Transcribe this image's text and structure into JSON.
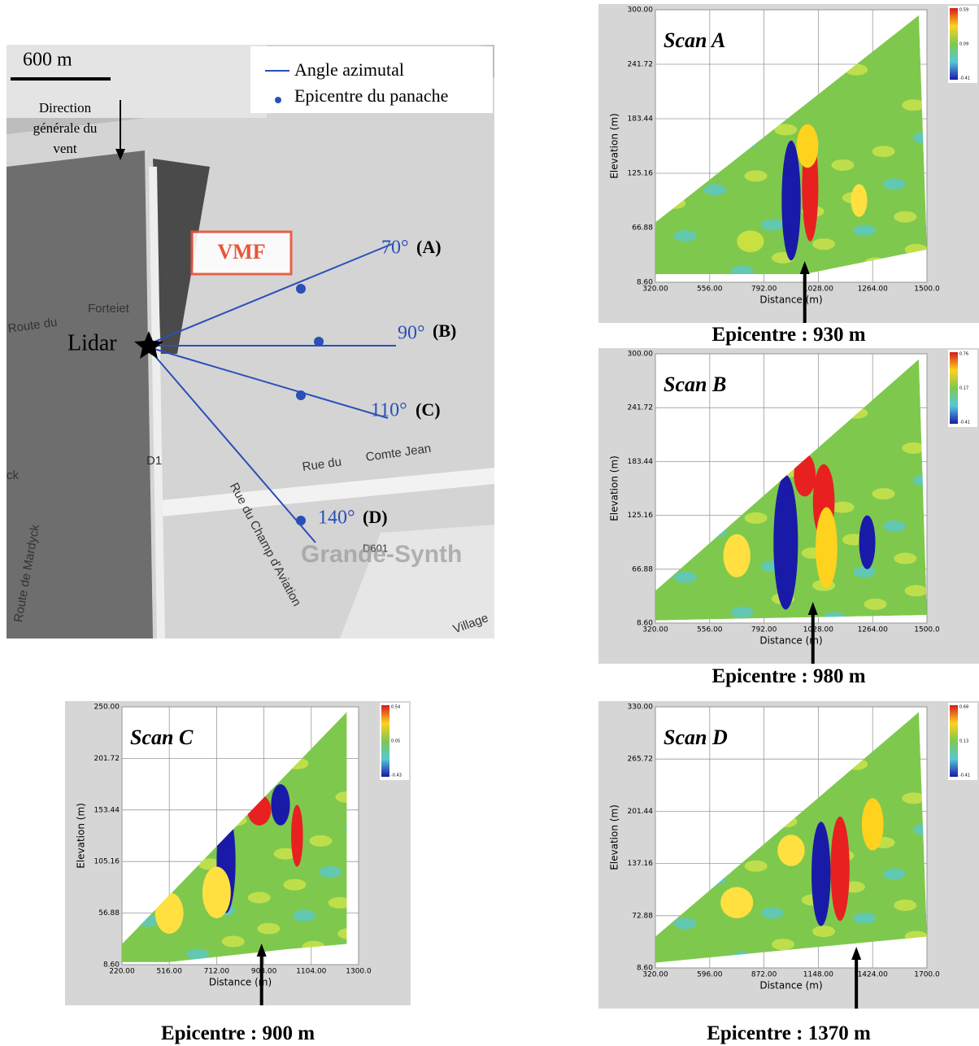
{
  "map": {
    "scale": "600 m",
    "legend": [
      "Angle azimutal",
      "Epicentre du panache"
    ],
    "wind": [
      "Direction",
      "générale du",
      "vent"
    ],
    "lidar": "Lidar",
    "vmf": "VMF",
    "azimuths": [
      {
        "angle": "70°",
        "label": "(A)"
      },
      {
        "angle": "90°",
        "label": "(B)"
      },
      {
        "angle": "110°",
        "label": "(C)"
      },
      {
        "angle": "140°",
        "label": "(D)"
      }
    ],
    "streets": [
      "Route du",
      "Forteiet",
      "D1",
      "Rue du",
      "Comte Jean",
      "Rue du Champ d'Aviation",
      "Route de Mardyck",
      "D601",
      "Grande-Synth",
      "Village",
      "ck"
    ]
  },
  "scans": [
    {
      "title": "Scan A",
      "x_label": "Distance (m)",
      "y_label": "Elevation (m)",
      "xticks": [
        "320.00",
        "556.00",
        "792.00",
        "1028.00",
        "1264.00",
        "1500.0"
      ],
      "yticks": [
        "8.60",
        "66.88",
        "125.16",
        "183.44",
        "241.72",
        "300.00"
      ],
      "colorbar": [
        "0.59",
        "0.09",
        "-0.41"
      ],
      "epicentre": "Epicentre : 930 m"
    },
    {
      "title": "Scan B",
      "x_label": "Distance (m)",
      "y_label": "Elevation (m)",
      "xticks": [
        "320.00",
        "556.00",
        "792.00",
        "1028.00",
        "1264.00",
        "1500.0"
      ],
      "yticks": [
        "8.60",
        "66.88",
        "125.16",
        "183.44",
        "241.72",
        "300.00"
      ],
      "colorbar": [
        "0.76",
        "0.17",
        "-0.41"
      ],
      "epicentre": "Epicentre : 980 m"
    },
    {
      "title": "Scan C",
      "x_label": "Distance (m)",
      "y_label": "Elevation (m)",
      "xticks": [
        "220.00",
        "516.00",
        "712.00",
        "908.00",
        "1104.00",
        "1300.0"
      ],
      "yticks": [
        "8.60",
        "56.88",
        "105.16",
        "153.44",
        "201.72",
        "250.00"
      ],
      "colorbar": [
        "0.54",
        "0.05",
        "-0.43"
      ],
      "epicentre": "Epicentre : 900 m"
    },
    {
      "title": "Scan D",
      "x_label": "Distance (m)",
      "y_label": "Elevation (m)",
      "xticks": [
        "320.00",
        "596.00",
        "872.00",
        "1148.00",
        "1424.00",
        "1700.0"
      ],
      "yticks": [
        "8.60",
        "72.88",
        "137.16",
        "201.44",
        "265.72",
        "330.00"
      ],
      "colorbar": [
        "0.68",
        "0.13",
        "-0.41"
      ],
      "epicentre": "Epicentre : 1370 m"
    }
  ]
}
